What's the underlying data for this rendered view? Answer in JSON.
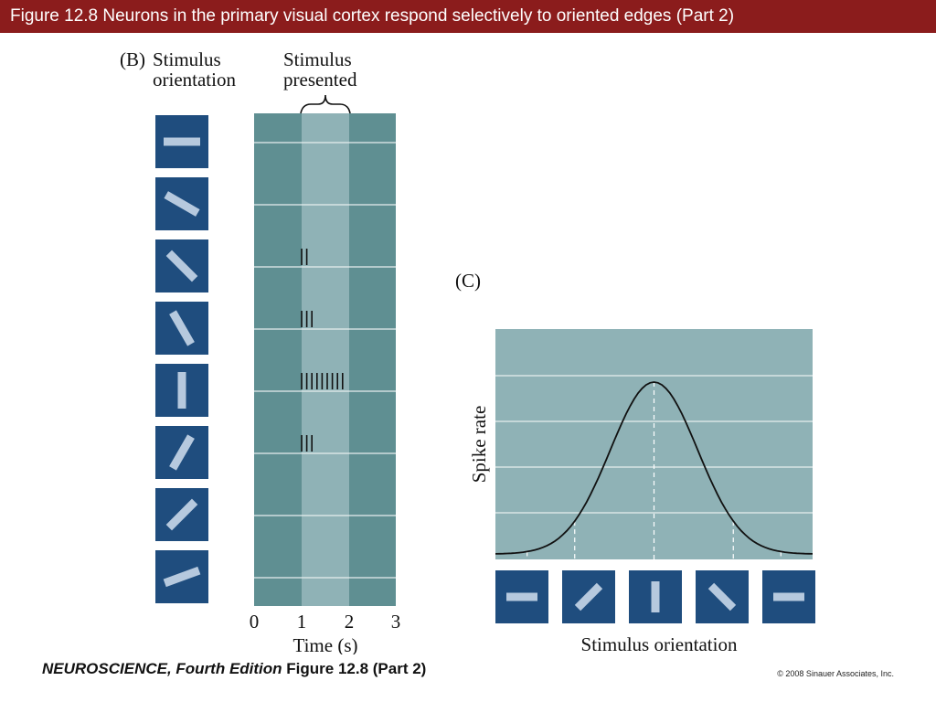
{
  "slide": {
    "title": "Figure 12.8  Neurons in the primary visual cortex respond selectively to oriented edges (Part 2)",
    "footer": {
      "book": "NEUROSCIENCE",
      "edition": ", Fourth Edition",
      "comma": ",",
      "figure": " Figure 12.8 (Part 2)",
      "copyright": "© 2008 Sinauer Associates, Inc."
    }
  },
  "panel_b": {
    "label": "(B)",
    "stimulus_orientation_line1": "Stimulus",
    "stimulus_orientation_line2": "orientation",
    "stimulus_presented_line1": "Stimulus",
    "stimulus_presented_line2": "presented",
    "time_ticks": [
      "0",
      "1",
      "2",
      "3"
    ],
    "xlabel": "Time (s)",
    "orientations_deg": [
      0,
      30,
      45,
      60,
      90,
      120,
      135,
      160
    ],
    "spike_counts": [
      0,
      0,
      2,
      3,
      9,
      3,
      0,
      0
    ]
  },
  "panel_c": {
    "label": "(C)",
    "ylabel": "Spike rate",
    "xlabel": "Stimulus orientation",
    "orientations_deg": [
      0,
      135,
      90,
      45,
      0
    ]
  },
  "colors": {
    "title_bar": "#8b1c1c",
    "raster_dark": "#5f8f92",
    "raster_light": "#8fb2b6",
    "tile": "#1f4d7e",
    "bar": "#b6c9de",
    "plot_bg": "#8fb2b6"
  },
  "chart_data": {
    "type": "line",
    "title": "",
    "xlabel": "Stimulus orientation",
    "ylabel": "Spike rate",
    "x": [
      0,
      1,
      2,
      3,
      4
    ],
    "series": [
      {
        "values": [
          0.2,
          1.2,
          5,
          1.2,
          0.2
        ]
      }
    ],
    "grid": true,
    "legend": "none"
  }
}
